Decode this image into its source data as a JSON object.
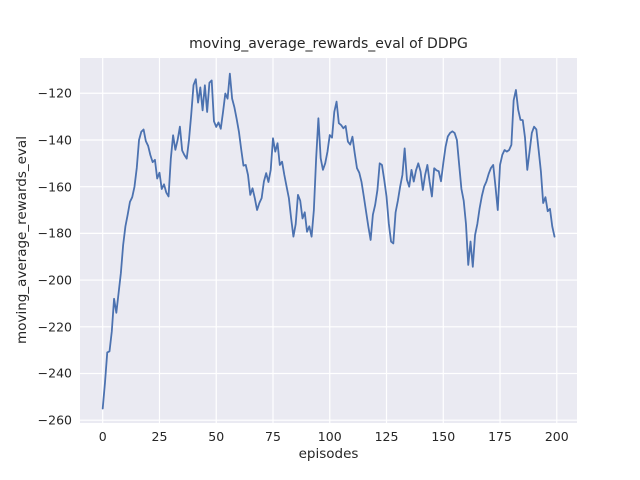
{
  "figure": {
    "title": "moving_average_rewards_eval of DDPG",
    "xlabel": "episodes",
    "ylabel": "moving_average_rewards_eval",
    "colors": {
      "figure_background": "#ffffff",
      "axes_background": "#eaeaf2",
      "grid": "#ffffff",
      "line": "#4c72b0",
      "text": "#262626"
    }
  },
  "chart_data": {
    "type": "line",
    "title": "moving_average_rewards_eval of DDPG",
    "xlabel": "episodes",
    "ylabel": "moving_average_rewards_eval",
    "grid": true,
    "legend_visible": false,
    "x_ticks": [
      0,
      25,
      50,
      75,
      100,
      125,
      150,
      175,
      200
    ],
    "y_ticks": [
      -120,
      -140,
      -160,
      -180,
      -200,
      -220,
      -240,
      -260
    ],
    "xlim": [
      -10.0,
      208.9
    ],
    "ylim": [
      -261.2,
      -104.9
    ],
    "series": [
      {
        "name": "moving_average_rewards_eval",
        "color": "#4c72b0",
        "x_start": 0,
        "x_step": 1,
        "values": [
          -255.0,
          -244.0,
          -231.0,
          -230.5,
          -222.0,
          -208.0,
          -214.0,
          -205.5,
          -197.0,
          -185.0,
          -177.0,
          -172.0,
          -166.5,
          -164.5,
          -160.0,
          -152.0,
          -140.0,
          -136.5,
          -135.5,
          -140.5,
          -142.5,
          -146.5,
          -149.5,
          -148.5,
          -156.5,
          -154.0,
          -161.0,
          -159.0,
          -162.5,
          -164.2,
          -148.0,
          -138.0,
          -144.2,
          -140.0,
          -134.3,
          -144.5,
          -146.5,
          -148.0,
          -140.0,
          -129.0,
          -116.5,
          -114.0,
          -124.0,
          -117.5,
          -127.3,
          -116.6,
          -128.0,
          -115.5,
          -114.5,
          -132.0,
          -134.4,
          -132.5,
          -135.2,
          -128.0,
          -120.1,
          -122.3,
          -111.6,
          -122.3,
          -126.0,
          -131.0,
          -136.5,
          -144.0,
          -151.0,
          -150.7,
          -155.0,
          -163.5,
          -160.7,
          -165.0,
          -170.0,
          -167.0,
          -164.9,
          -157.8,
          -154.2,
          -158.0,
          -152.8,
          -139.3,
          -145.0,
          -141.4,
          -150.7,
          -149.3,
          -155.0,
          -160.0,
          -164.9,
          -173.6,
          -181.4,
          -176.0,
          -163.5,
          -166.0,
          -173.6,
          -171.0,
          -179.3,
          -177.0,
          -181.4,
          -170.0,
          -148.0,
          -130.7,
          -147.8,
          -152.8,
          -150.0,
          -145.0,
          -137.9,
          -139.0,
          -128.0,
          -123.6,
          -132.8,
          -133.6,
          -135.0,
          -134.0,
          -140.7,
          -142.0,
          -138.6,
          -145.7,
          -152.1,
          -154.0,
          -158.0,
          -164.2,
          -170.7,
          -177.1,
          -182.8,
          -172.0,
          -167.8,
          -161.4,
          -150.0,
          -150.7,
          -157.1,
          -164.2,
          -175.7,
          -183.5,
          -184.3,
          -171.0,
          -166.0,
          -160.0,
          -155.0,
          -143.6,
          -157.0,
          -160.0,
          -152.8,
          -157.8,
          -153.0,
          -150.0,
          -153.5,
          -161.4,
          -155.0,
          -150.7,
          -158.0,
          -164.2,
          -152.1,
          -153.0,
          -153.4,
          -157.7,
          -150.0,
          -143.0,
          -138.5,
          -137.0,
          -136.3,
          -137.0,
          -140.0,
          -150.6,
          -161.0,
          -166.0,
          -176.0,
          -193.5,
          -183.5,
          -194.3,
          -180.7,
          -176.0,
          -169.3,
          -164.0,
          -160.0,
          -157.8,
          -154.5,
          -152.0,
          -150.7,
          -160.0,
          -170.0,
          -150.7,
          -146.4,
          -144.3,
          -145.0,
          -144.3,
          -142.1,
          -123.0,
          -118.6,
          -127.1,
          -131.4,
          -131.5,
          -139.0,
          -152.8,
          -145.0,
          -137.0,
          -134.3,
          -135.5,
          -144.3,
          -153.5,
          -167.0,
          -164.5,
          -170.5,
          -169.5,
          -177.0,
          -181.4
        ]
      }
    ]
  }
}
